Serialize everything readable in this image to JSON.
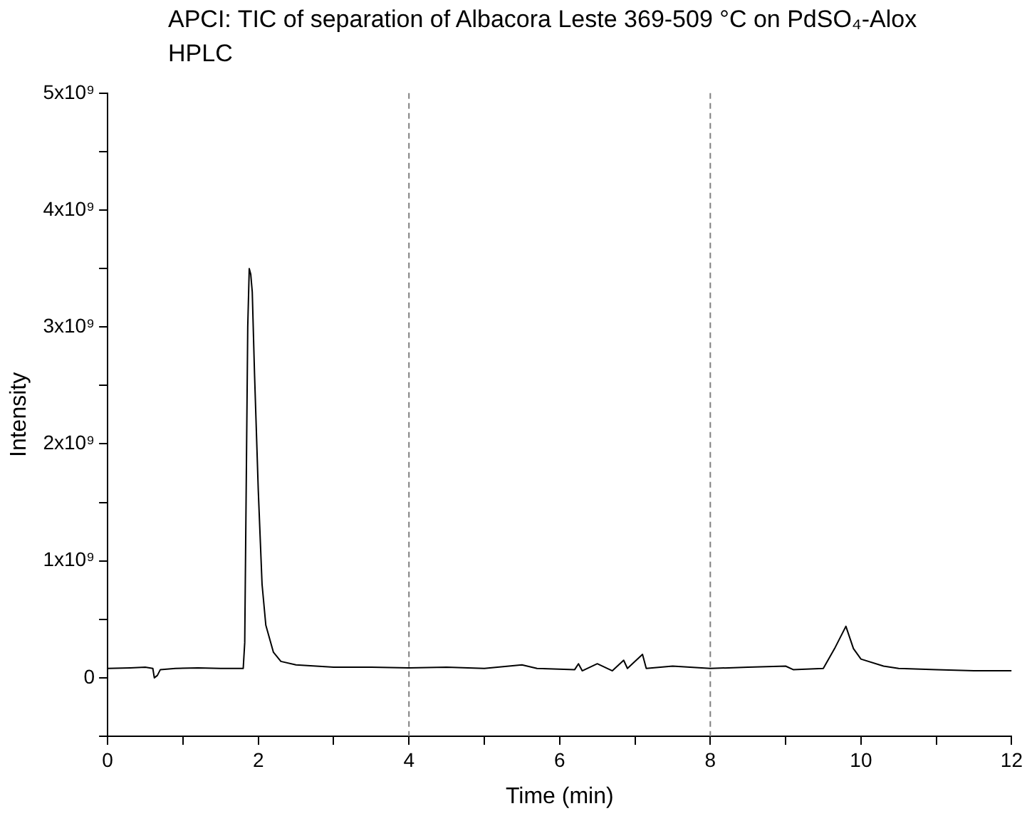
{
  "chart_data": {
    "type": "line",
    "title": "APCI: TIC of separation of Albacora Leste 369-509 °C on PdSO₄-Alox HPLC",
    "xlabel": "Time (min)",
    "ylabel": "Intensity",
    "x": [
      0,
      0.3,
      0.5,
      0.6,
      0.62,
      0.66,
      0.7,
      0.9,
      1.2,
      1.5,
      1.8,
      1.82,
      1.86,
      1.88,
      1.9,
      1.92,
      1.95,
      2.0,
      2.05,
      2.1,
      2.2,
      2.3,
      2.5,
      3.0,
      3.5,
      4.0,
      4.5,
      5.0,
      5.5,
      5.7,
      6.2,
      6.25,
      6.3,
      6.5,
      6.7,
      6.85,
      6.9,
      7.1,
      7.15,
      7.5,
      8.0,
      8.5,
      9.0,
      9.1,
      9.5,
      9.65,
      9.8,
      9.9,
      10.0,
      10.3,
      10.5,
      11.0,
      11.5,
      12
    ],
    "series": [
      {
        "color": "#000000",
        "values": [
          80000000,
          85000000,
          90000000,
          80000000,
          0,
          20000000,
          70000000,
          80000000,
          85000000,
          80000000,
          80000000,
          300000000,
          3000000000,
          3500000000,
          3450000000,
          3300000000,
          2600000000,
          1600000000,
          800000000,
          450000000,
          220000000,
          140000000,
          110000000,
          90000000,
          90000000,
          85000000,
          90000000,
          80000000,
          110000000,
          80000000,
          70000000,
          120000000,
          60000000,
          120000000,
          60000000,
          150000000,
          80000000,
          200000000,
          80000000,
          100000000,
          80000000,
          90000000,
          100000000,
          70000000,
          80000000,
          250000000,
          440000000,
          250000000,
          160000000,
          100000000,
          80000000,
          70000000,
          60000000,
          60000000
        ]
      }
    ],
    "xlim": [
      0,
      12
    ],
    "xticks": [
      0,
      {
        "value": 1,
        "label": null
      },
      2,
      {
        "value": 3,
        "label": null
      },
      4,
      {
        "value": 5,
        "label": null
      },
      6,
      {
        "value": 7,
        "label": null
      },
      8,
      {
        "value": 9,
        "label": null
      },
      10,
      {
        "value": 11,
        "label": null
      },
      12
    ],
    "ylim": [
      -500000000,
      5000000000
    ],
    "yticks": [
      {
        "value": -500000000,
        "label": null
      },
      0,
      {
        "value": 500000000,
        "label": null
      },
      {
        "value": 1000000000,
        "label": "1x10⁹"
      },
      {
        "value": 1500000000,
        "label": null
      },
      {
        "value": 2000000000,
        "label": "2x10⁹"
      },
      {
        "value": 2500000000,
        "label": null
      },
      {
        "value": 3000000000,
        "label": "3x10⁹"
      },
      {
        "value": 3500000000,
        "label": null
      },
      {
        "value": 4000000000,
        "label": "4x10⁹"
      },
      {
        "value": 4500000000,
        "label": null
      },
      {
        "value": 5000000000,
        "label": "5x10⁹"
      }
    ],
    "ref_lines": [
      {
        "axis": "x",
        "value": 4,
        "color": "#808080",
        "line_style": "dashed"
      },
      {
        "axis": "x",
        "value": 8,
        "color": "#808080",
        "line_style": "dashed"
      }
    ],
    "grid": false,
    "legend": false,
    "marker": "none",
    "line_style": "solid"
  }
}
